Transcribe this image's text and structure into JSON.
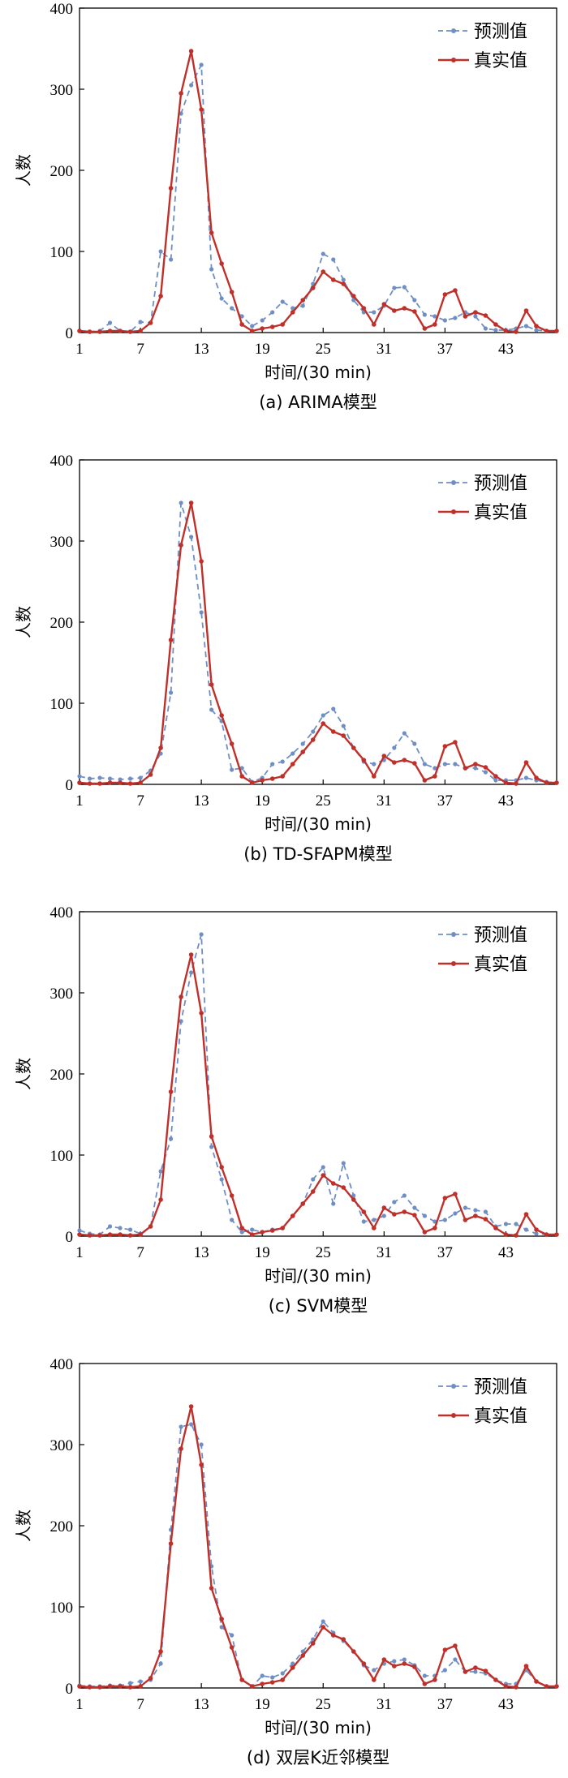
{
  "colors": {
    "pred": "#6F8FC4",
    "real": "#C0302B",
    "axis": "#000000"
  },
  "chart_data": [
    {
      "type": "line",
      "caption": "(a) ARIMA模型",
      "xlabel": "时间/(30 min)",
      "ylabel": "人数",
      "ylim": [
        0,
        400
      ],
      "xlim": [
        1,
        48
      ],
      "yticks": [
        "0",
        "100",
        "200",
        "300",
        "400"
      ],
      "xticks": [
        "1",
        "7",
        "13",
        "19",
        "25",
        "31",
        "37",
        "43"
      ],
      "legend": [
        "预测值",
        "真实值"
      ],
      "x": [
        1,
        2,
        3,
        4,
        5,
        6,
        7,
        8,
        9,
        10,
        11,
        12,
        13,
        14,
        15,
        16,
        17,
        18,
        19,
        20,
        21,
        22,
        23,
        24,
        25,
        26,
        27,
        28,
        29,
        30,
        31,
        32,
        33,
        34,
        35,
        36,
        37,
        38,
        39,
        40,
        41,
        42,
        43,
        44,
        45,
        46,
        47,
        48
      ],
      "series": [
        {
          "name": "预测值",
          "values": [
            2,
            1,
            2,
            12,
            2,
            1,
            13,
            12,
            100,
            90,
            270,
            305,
            330,
            78,
            42,
            30,
            20,
            8,
            15,
            25,
            38,
            30,
            33,
            60,
            97,
            90,
            65,
            40,
            25,
            25,
            33,
            55,
            56,
            40,
            22,
            20,
            15,
            18,
            25,
            20,
            5,
            3,
            3,
            5,
            8,
            3,
            2,
            2
          ]
        },
        {
          "name": "真实值",
          "values": [
            2,
            1,
            1,
            2,
            2,
            1,
            2,
            12,
            45,
            178,
            295,
            347,
            275,
            123,
            85,
            50,
            10,
            2,
            5,
            7,
            10,
            25,
            40,
            55,
            75,
            65,
            60,
            45,
            30,
            10,
            35,
            27,
            30,
            26,
            5,
            10,
            47,
            52,
            20,
            25,
            21,
            10,
            2,
            1,
            27,
            8,
            2,
            2
          ]
        }
      ]
    },
    {
      "type": "line",
      "caption": "(b) TD-SFAPM模型",
      "xlabel": "时间/(30 min)",
      "ylabel": "人数",
      "ylim": [
        0,
        400
      ],
      "xlim": [
        1,
        48
      ],
      "yticks": [
        "0",
        "100",
        "200",
        "300",
        "400"
      ],
      "xticks": [
        "1",
        "7",
        "13",
        "19",
        "25",
        "31",
        "37",
        "43"
      ],
      "legend": [
        "预测值",
        "真实值"
      ],
      "x": [
        1,
        2,
        3,
        4,
        5,
        6,
        7,
        8,
        9,
        10,
        11,
        12,
        13,
        14,
        15,
        16,
        17,
        18,
        19,
        20,
        21,
        22,
        23,
        24,
        25,
        26,
        27,
        28,
        29,
        30,
        31,
        32,
        33,
        34,
        35,
        36,
        37,
        38,
        39,
        40,
        41,
        42,
        43,
        44,
        45,
        46,
        47,
        48
      ],
      "series": [
        {
          "name": "预测值",
          "values": [
            10,
            7,
            8,
            7,
            6,
            7,
            8,
            17,
            38,
            113,
            347,
            305,
            212,
            92,
            78,
            18,
            20,
            3,
            8,
            25,
            28,
            38,
            50,
            65,
            85,
            93,
            72,
            45,
            28,
            25,
            30,
            45,
            63,
            50,
            25,
            20,
            25,
            25,
            20,
            20,
            15,
            5,
            5,
            5,
            8,
            5,
            3,
            2
          ]
        },
        {
          "name": "真实值",
          "values": [
            2,
            1,
            1,
            2,
            2,
            1,
            2,
            12,
            45,
            178,
            295,
            347,
            275,
            123,
            85,
            50,
            10,
            2,
            5,
            7,
            10,
            25,
            40,
            55,
            75,
            65,
            60,
            45,
            30,
            10,
            35,
            27,
            30,
            26,
            5,
            10,
            47,
            52,
            20,
            25,
            21,
            10,
            2,
            1,
            27,
            8,
            2,
            2
          ]
        }
      ]
    },
    {
      "type": "line",
      "caption": "(c) SVM模型",
      "xlabel": "时间/(30 min)",
      "ylabel": "人数",
      "ylim": [
        0,
        400
      ],
      "xlim": [
        1,
        48
      ],
      "yticks": [
        "0",
        "100",
        "200",
        "300",
        "400"
      ],
      "xticks": [
        "1",
        "7",
        "13",
        "19",
        "25",
        "31",
        "37",
        "43"
      ],
      "legend": [
        "预测值",
        "真实值"
      ],
      "x": [
        1,
        2,
        3,
        4,
        5,
        6,
        7,
        8,
        9,
        10,
        11,
        12,
        13,
        14,
        15,
        16,
        17,
        18,
        19,
        20,
        21,
        22,
        23,
        24,
        25,
        26,
        27,
        28,
        29,
        30,
        31,
        32,
        33,
        34,
        35,
        36,
        37,
        38,
        39,
        40,
        41,
        42,
        43,
        44,
        45,
        46,
        47,
        48
      ],
      "series": [
        {
          "name": "预测值",
          "values": [
            7,
            3,
            2,
            12,
            10,
            8,
            3,
            12,
            80,
            120,
            265,
            325,
            372,
            110,
            70,
            20,
            5,
            8,
            5,
            8,
            10,
            25,
            40,
            70,
            85,
            40,
            90,
            50,
            18,
            20,
            25,
            42,
            50,
            35,
            25,
            18,
            20,
            28,
            35,
            32,
            30,
            12,
            15,
            15,
            8,
            3,
            2,
            2
          ]
        },
        {
          "name": "真实值",
          "values": [
            2,
            1,
            1,
            2,
            2,
            1,
            2,
            12,
            45,
            178,
            295,
            347,
            275,
            123,
            85,
            50,
            10,
            2,
            5,
            7,
            10,
            25,
            40,
            55,
            75,
            65,
            60,
            45,
            30,
            10,
            35,
            27,
            30,
            26,
            5,
            10,
            47,
            52,
            20,
            25,
            21,
            10,
            2,
            1,
            27,
            8,
            2,
            2
          ]
        }
      ]
    },
    {
      "type": "line",
      "caption": "(d) 双层K近邻模型",
      "xlabel": "时间/(30 min)",
      "ylabel": "人数",
      "ylim": [
        0,
        400
      ],
      "xlim": [
        1,
        48
      ],
      "yticks": [
        "0",
        "100",
        "200",
        "300",
        "400"
      ],
      "xticks": [
        "1",
        "7",
        "13",
        "19",
        "25",
        "31",
        "37",
        "43"
      ],
      "legend": [
        "预测值",
        "真实值"
      ],
      "x": [
        1,
        2,
        3,
        4,
        5,
        6,
        7,
        8,
        9,
        10,
        11,
        12,
        13,
        14,
        15,
        16,
        17,
        18,
        19,
        20,
        21,
        22,
        23,
        24,
        25,
        26,
        27,
        28,
        29,
        30,
        31,
        32,
        33,
        34,
        35,
        36,
        37,
        38,
        39,
        40,
        41,
        42,
        43,
        44,
        45,
        46,
        47,
        48
      ],
      "series": [
        {
          "name": "预测值",
          "values": [
            3,
            2,
            2,
            3,
            3,
            6,
            8,
            10,
            30,
            195,
            322,
            325,
            300,
            150,
            75,
            65,
            10,
            2,
            15,
            13,
            18,
            30,
            45,
            60,
            82,
            68,
            58,
            45,
            28,
            22,
            30,
            33,
            35,
            28,
            15,
            15,
            22,
            35,
            20,
            20,
            18,
            10,
            5,
            5,
            22,
            8,
            2,
            2
          ]
        },
        {
          "name": "真实值",
          "values": [
            2,
            1,
            1,
            2,
            2,
            1,
            2,
            12,
            45,
            178,
            295,
            347,
            275,
            123,
            85,
            50,
            10,
            2,
            5,
            7,
            10,
            25,
            40,
            55,
            75,
            65,
            60,
            45,
            30,
            10,
            35,
            27,
            30,
            26,
            5,
            10,
            47,
            52,
            20,
            25,
            21,
            10,
            2,
            1,
            27,
            8,
            2,
            2
          ]
        }
      ]
    }
  ]
}
